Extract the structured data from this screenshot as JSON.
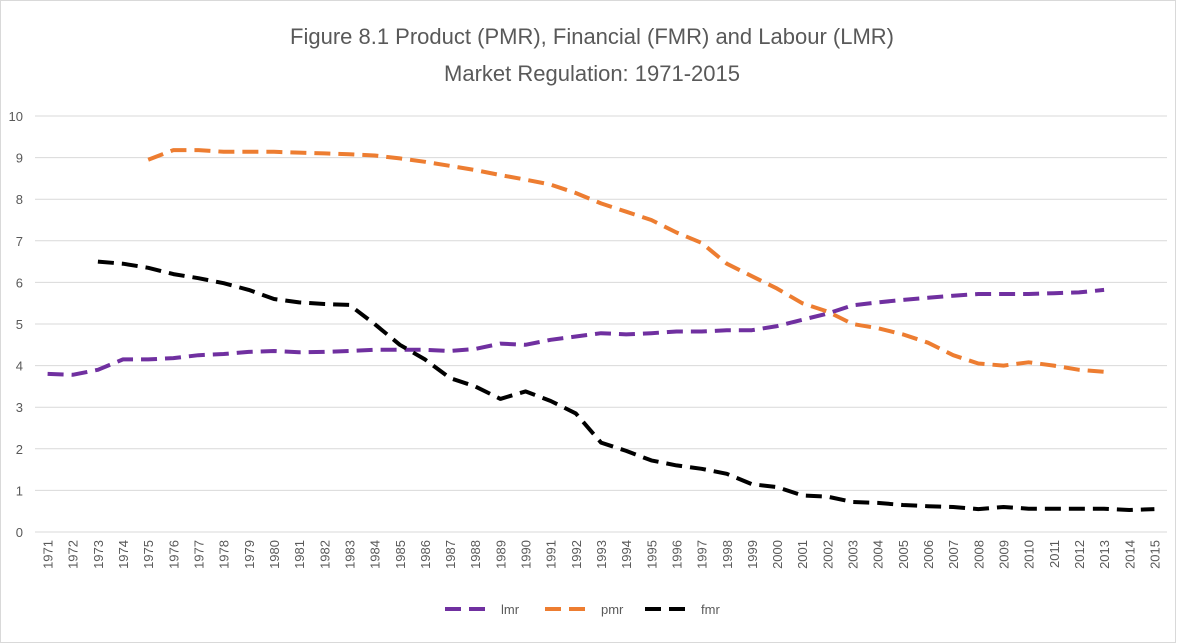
{
  "chart_data": {
    "type": "line",
    "title": [
      "Figure 8.1 Product (PMR), Financial (FMR) and Labour (LMR)",
      "Market Regulation: 1971-2015"
    ],
    "categories": [
      "1971",
      "1972",
      "1973",
      "1974",
      "1975",
      "1976",
      "1977",
      "1978",
      "1979",
      "1980",
      "1981",
      "1982",
      "1983",
      "1984",
      "1985",
      "1986",
      "1987",
      "1988",
      "1989",
      "1990",
      "1991",
      "1992",
      "1993",
      "1994",
      "1995",
      "1996",
      "1997",
      "1998",
      "1999",
      "2000",
      "2001",
      "2002",
      "2003",
      "2004",
      "2005",
      "2006",
      "2007",
      "2008",
      "2009",
      "2010",
      "2011",
      "2012",
      "2013",
      "2014",
      "2015"
    ],
    "series": [
      {
        "name": "lmr",
        "color": "#7030a0",
        "values": [
          3.8,
          3.78,
          3.9,
          4.15,
          4.15,
          4.18,
          4.25,
          4.28,
          4.33,
          4.35,
          4.32,
          4.33,
          4.35,
          4.38,
          4.38,
          4.38,
          4.35,
          4.4,
          4.53,
          4.5,
          4.62,
          4.7,
          4.78,
          4.75,
          4.78,
          4.82,
          4.82,
          4.85,
          4.85,
          4.95,
          5.1,
          5.25,
          5.45,
          5.52,
          5.58,
          5.63,
          5.68,
          5.72,
          5.72,
          5.72,
          5.74,
          5.76,
          5.82,
          null,
          null
        ]
      },
      {
        "name": "pmr",
        "color": "#ed7d31",
        "values": [
          null,
          null,
          null,
          null,
          8.95,
          9.18,
          9.18,
          9.14,
          9.14,
          9.14,
          9.12,
          9.1,
          9.08,
          9.05,
          8.98,
          8.9,
          8.8,
          8.7,
          8.58,
          8.47,
          8.35,
          8.15,
          7.9,
          7.7,
          7.5,
          7.2,
          6.95,
          6.45,
          6.15,
          5.85,
          5.5,
          5.3,
          5.0,
          4.9,
          4.75,
          4.55,
          4.25,
          4.05,
          4.0,
          4.08,
          4.0,
          3.9,
          3.85,
          null,
          null
        ]
      },
      {
        "name": "fmr",
        "color": "#000000",
        "values": [
          null,
          null,
          6.5,
          6.45,
          6.35,
          6.2,
          6.1,
          5.98,
          5.82,
          5.6,
          5.52,
          5.48,
          5.46,
          5.0,
          4.5,
          4.15,
          3.7,
          3.5,
          3.2,
          3.38,
          3.15,
          2.85,
          2.15,
          1.95,
          1.72,
          1.6,
          1.52,
          1.4,
          1.15,
          1.08,
          0.88,
          0.85,
          0.72,
          0.7,
          0.65,
          0.62,
          0.6,
          0.55,
          0.6,
          0.56,
          0.56,
          0.56,
          0.56,
          0.53,
          0.55
        ]
      }
    ],
    "ylim": [
      0,
      10
    ],
    "yticks": [
      0,
      1,
      2,
      3,
      4,
      5,
      6,
      7,
      8,
      9,
      10
    ],
    "grid": true,
    "legend": "bottom"
  }
}
